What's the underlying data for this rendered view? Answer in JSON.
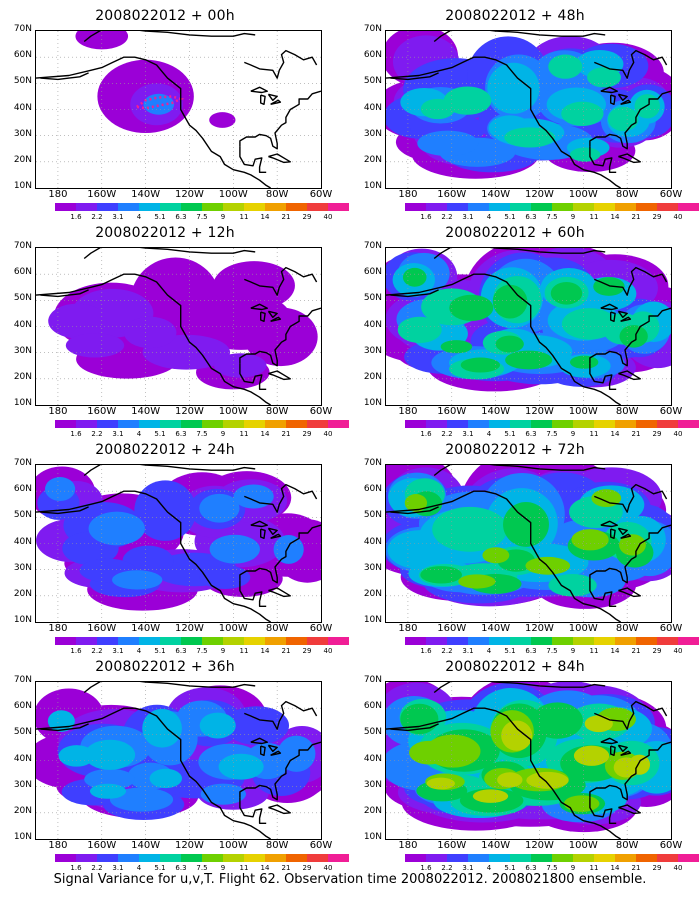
{
  "caption": "Signal Variance for u,v,T. Flight 62. Observation time 2008022012. 2008021800 ensemble.",
  "lat_labels": [
    "70N",
    "60N",
    "50N",
    "40N",
    "30N",
    "20N",
    "10N"
  ],
  "lon_labels": [
    "180",
    "160W",
    "140W",
    "120W",
    "100W",
    "80W",
    "60W"
  ],
  "colorbar": {
    "levels": [
      "1.6",
      "2.2",
      "3.1",
      "4",
      "5.1",
      "6.3",
      "7.5",
      "9",
      "11",
      "14",
      "21",
      "29",
      "40"
    ],
    "colors": [
      "#9b00d7",
      "#7f1bf0",
      "#3f3fff",
      "#1f7fff",
      "#00b4e6",
      "#00d2a0",
      "#00c850",
      "#6ed000",
      "#b4d200",
      "#e6d200",
      "#f0a000",
      "#f06400",
      "#f03c3c",
      "#f01e96"
    ]
  },
  "panels": [
    {
      "title": "2008022012 + 00h",
      "lead_hours": 0,
      "intensity": 0.12
    },
    {
      "title": "2008022012 + 12h",
      "lead_hours": 12,
      "intensity": 0.22
    },
    {
      "title": "2008022012 + 24h",
      "lead_hours": 24,
      "intensity": 0.35
    },
    {
      "title": "2008022012 + 36h",
      "lead_hours": 36,
      "intensity": 0.45
    },
    {
      "title": "2008022012 + 48h",
      "lead_hours": 48,
      "intensity": 0.6
    },
    {
      "title": "2008022012 + 60h",
      "lead_hours": 60,
      "intensity": 0.7
    },
    {
      "title": "2008022012 + 72h",
      "lead_hours": 72,
      "intensity": 0.82
    },
    {
      "title": "2008022012 + 84h",
      "lead_hours": 84,
      "intensity": 0.92
    }
  ]
}
